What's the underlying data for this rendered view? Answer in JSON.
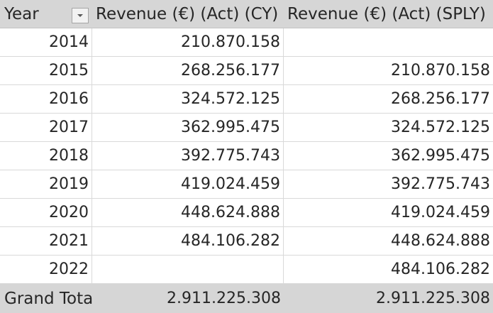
{
  "pivot": {
    "headers": {
      "year": "Year",
      "cy": "Revenue (€) (Act) (CY)",
      "sply": "Revenue (€) (Act) (SPLY)"
    },
    "rows": [
      {
        "year": "2014",
        "cy": "210.870.158",
        "sply": ""
      },
      {
        "year": "2015",
        "cy": "268.256.177",
        "sply": "210.870.158"
      },
      {
        "year": "2016",
        "cy": "324.572.125",
        "sply": "268.256.177"
      },
      {
        "year": "2017",
        "cy": "362.995.475",
        "sply": "324.572.125"
      },
      {
        "year": "2018",
        "cy": "392.775.743",
        "sply": "362.995.475"
      },
      {
        "year": "2019",
        "cy": "419.024.459",
        "sply": "392.775.743"
      },
      {
        "year": "2020",
        "cy": "448.624.888",
        "sply": "419.024.459"
      },
      {
        "year": "2021",
        "cy": "484.106.282",
        "sply": "448.624.888"
      },
      {
        "year": "2022",
        "cy": "",
        "sply": "484.106.282"
      }
    ],
    "total": {
      "label": "Grand Tota",
      "cy": "2.911.225.308",
      "sply": "2.911.225.308"
    },
    "filter_icon": "chevron-down-icon",
    "colors": {
      "header_bg": "#d6d6d6",
      "gridline": "#d9d9d9",
      "text": "#262626"
    }
  }
}
